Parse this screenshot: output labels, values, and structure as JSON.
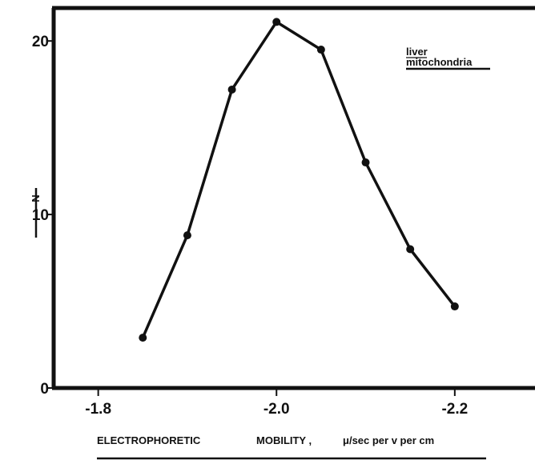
{
  "chart_data": {
    "type": "line",
    "title": "",
    "xlabel_parts": [
      "ELECTROPHORETIC",
      "MOBILITY ,",
      "μ/sec per v per cm"
    ],
    "ylabel": "N",
    "annotation": [
      "liver",
      "mitochondria"
    ],
    "x_ticks": [
      {
        "value": -1.8,
        "label": "-1.8"
      },
      {
        "value": -2.0,
        "label": "-2.0"
      },
      {
        "value": -2.2,
        "label": "-2.2"
      }
    ],
    "y_ticks": [
      {
        "value": 0,
        "label": "0"
      },
      {
        "value": 10,
        "label": "10"
      },
      {
        "value": 20,
        "label": "20"
      }
    ],
    "xlim": [
      -1.75,
      -2.29
    ],
    "ylim": [
      0,
      21.9
    ],
    "x_reversed": true,
    "grid": false,
    "series": [
      {
        "x": [
          -1.85,
          -1.9,
          -1.95,
          -2.0,
          -2.05,
          -2.1,
          -2.15,
          -2.2
        ],
        "y": [
          2.9,
          8.8,
          17.2,
          21.1,
          19.5,
          13.0,
          8.0,
          4.7
        ]
      }
    ],
    "line_color": "#111111"
  }
}
